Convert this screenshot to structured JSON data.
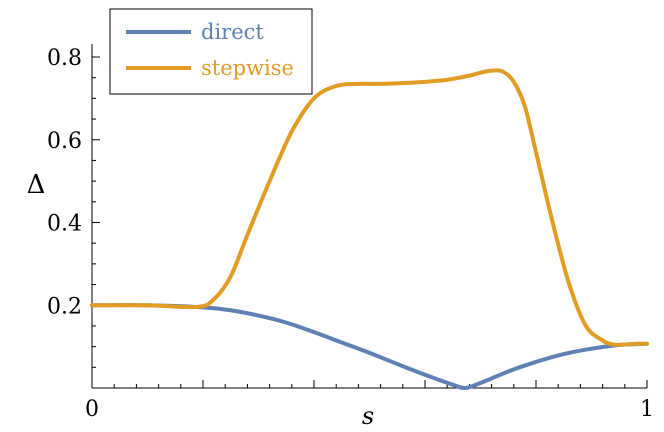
{
  "chart_data": {
    "type": "line",
    "xlabel": "s",
    "ylabel": "Δ",
    "xlim": [
      0,
      1
    ],
    "ylim": [
      0,
      0.85
    ],
    "x_ticks": [
      0,
      1
    ],
    "x_tick_labels": [
      "0",
      "1"
    ],
    "y_ticks": [
      0.2,
      0.4,
      0.6,
      0.8
    ],
    "y_tick_labels": [
      "0.2",
      "0.4",
      "0.6",
      "0.8"
    ],
    "grid": false,
    "legend_position": "top-left",
    "series": [
      {
        "name": "direct",
        "color": "#5e81b5",
        "x": [
          0.0,
          0.1,
          0.2,
          0.25,
          0.3,
          0.35,
          0.4,
          0.45,
          0.5,
          0.55,
          0.6,
          0.65,
          0.672,
          0.7,
          0.75,
          0.8,
          0.85,
          0.9,
          0.95,
          1.0
        ],
        "y": [
          0.2,
          0.2,
          0.195,
          0.188,
          0.175,
          0.158,
          0.135,
          0.11,
          0.085,
          0.058,
          0.032,
          0.008,
          0.0,
          0.012,
          0.04,
          0.063,
          0.082,
          0.095,
          0.104,
          0.107
        ]
      },
      {
        "name": "stepwise",
        "color": "#e19c24",
        "x": [
          0.0,
          0.1,
          0.19,
          0.22,
          0.25,
          0.28,
          0.32,
          0.36,
          0.4,
          0.44,
          0.48,
          0.52,
          0.56,
          0.6,
          0.64,
          0.68,
          0.7,
          0.72,
          0.74,
          0.76,
          0.78,
          0.8,
          0.83,
          0.86,
          0.89,
          0.92,
          0.94,
          0.96,
          0.98,
          1.0
        ],
        "y": [
          0.2,
          0.2,
          0.196,
          0.215,
          0.27,
          0.37,
          0.5,
          0.62,
          0.7,
          0.73,
          0.735,
          0.735,
          0.737,
          0.74,
          0.745,
          0.755,
          0.762,
          0.767,
          0.765,
          0.74,
          0.68,
          0.57,
          0.4,
          0.25,
          0.15,
          0.115,
          0.105,
          0.105,
          0.107,
          0.107
        ]
      }
    ]
  }
}
